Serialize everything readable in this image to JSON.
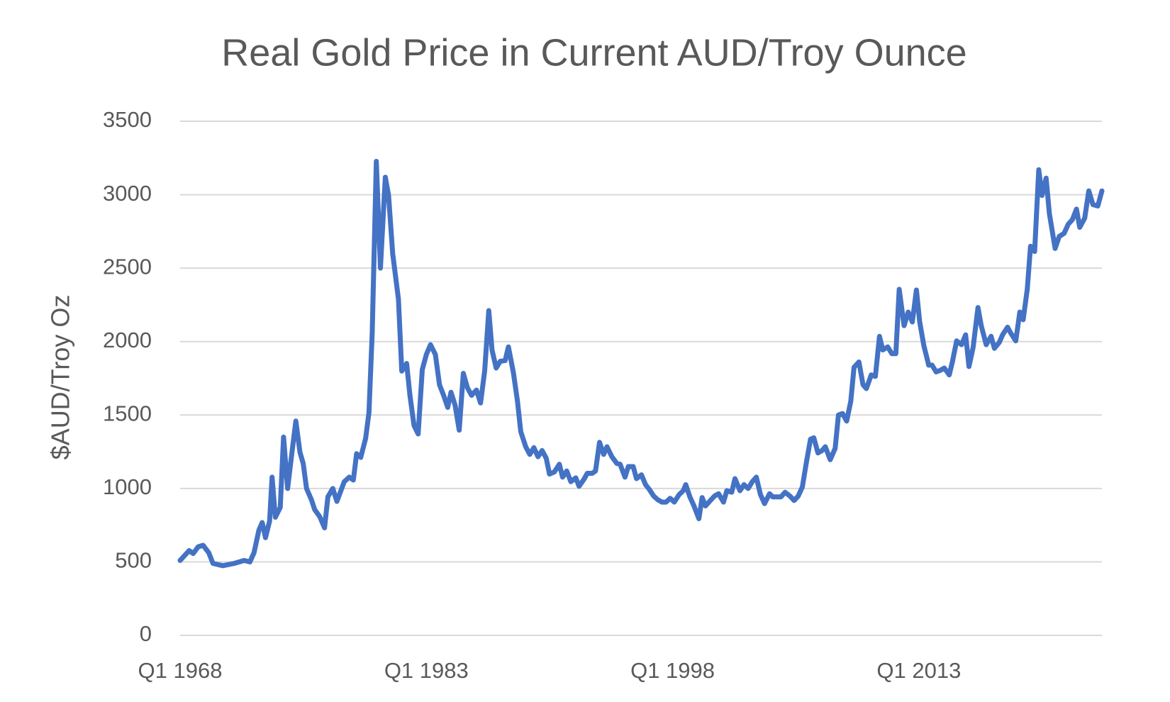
{
  "chart_data": {
    "type": "line",
    "title": "Real Gold Price in Current AUD/Troy Ounce",
    "y_label": "$AUD/Troy Oz",
    "color": "#4472c4",
    "grid": true,
    "xlim": [
      1968,
      2024.15
    ],
    "ylim": [
      0,
      3500
    ],
    "yticks": [
      0,
      500,
      1000,
      1500,
      2000,
      2500,
      3000,
      3500
    ],
    "xticks": [
      {
        "value": 1968,
        "label": "Q1 1968"
      },
      {
        "value": 1983,
        "label": "Q1 1983"
      },
      {
        "value": 1998,
        "label": "Q1 1998"
      },
      {
        "value": 2013,
        "label": "Q1 2013"
      }
    ],
    "x": [
      1968.0,
      1968.55,
      1968.8,
      1969.1,
      1969.4,
      1969.75,
      1970.0,
      1970.6,
      1971.3,
      1971.9,
      1972.25,
      1972.5,
      1972.8,
      1973.0,
      1973.2,
      1973.45,
      1973.6,
      1973.8,
      1974.1,
      1974.3,
      1974.55,
      1974.8,
      1975.05,
      1975.3,
      1975.5,
      1975.7,
      1976.0,
      1976.2,
      1976.5,
      1976.8,
      1977.0,
      1977.3,
      1977.55,
      1978.0,
      1978.3,
      1978.55,
      1978.75,
      1979.0,
      1979.3,
      1979.5,
      1979.7,
      1979.95,
      1980.2,
      1980.5,
      1980.7,
      1980.95,
      1981.3,
      1981.5,
      1981.8,
      1982.0,
      1982.25,
      1982.5,
      1982.75,
      1983.0,
      1983.25,
      1983.55,
      1983.8,
      1984.05,
      1984.3,
      1984.5,
      1984.75,
      1985.0,
      1985.25,
      1985.5,
      1985.75,
      1986.05,
      1986.3,
      1986.55,
      1986.8,
      1987.0,
      1987.25,
      1987.5,
      1987.8,
      1988.0,
      1988.3,
      1988.55,
      1988.75,
      1989.05,
      1989.3,
      1989.55,
      1989.8,
      1990.05,
      1990.3,
      1990.5,
      1990.8,
      1991.1,
      1991.3,
      1991.55,
      1991.8,
      1992.1,
      1992.3,
      1992.6,
      1992.8,
      1993.1,
      1993.3,
      1993.55,
      1993.8,
      1994.0,
      1994.3,
      1994.6,
      1994.8,
      1995.1,
      1995.3,
      1995.6,
      1995.8,
      1996.1,
      1996.35,
      1996.6,
      1996.85,
      1997.1,
      1997.35,
      1997.6,
      1997.85,
      1998.1,
      1998.4,
      1998.65,
      1998.8,
      1999.05,
      1999.3,
      1999.6,
      1999.8,
      2000.0,
      2000.3,
      2000.55,
      2000.8,
      2001.1,
      2001.3,
      2001.6,
      2001.8,
      2002.1,
      2002.35,
      2002.6,
      2002.85,
      2003.1,
      2003.35,
      2003.6,
      2003.9,
      2004.1,
      2004.4,
      2004.6,
      2004.85,
      2005.15,
      2005.4,
      2005.65,
      2005.9,
      2006.15,
      2006.4,
      2006.6,
      2006.85,
      2007.1,
      2007.3,
      2007.6,
      2007.9,
      2008.1,
      2008.35,
      2008.6,
      2008.85,
      2009.05,
      2009.35,
      2009.6,
      2009.8,
      2010.1,
      2010.35,
      2010.6,
      2010.8,
      2011.1,
      2011.35,
      2011.6,
      2011.8,
      2012.1,
      2012.35,
      2012.6,
      2012.85,
      2013.05,
      2013.3,
      2013.6,
      2013.8,
      2014.05,
      2014.3,
      2014.55,
      2014.85,
      2015.05,
      2015.3,
      2015.6,
      2015.85,
      2016.05,
      2016.3,
      2016.6,
      2016.8,
      2017.1,
      2017.4,
      2017.6,
      2017.9,
      2018.1,
      2018.4,
      2018.6,
      2018.9,
      2019.15,
      2019.35,
      2019.6,
      2019.8,
      2020.05,
      2020.3,
      2020.5,
      2020.75,
      2020.95,
      2021.3,
      2021.55,
      2021.85,
      2022.1,
      2022.35,
      2022.6,
      2022.8,
      2023.1,
      2023.35,
      2023.6,
      2023.9,
      2024.15
    ],
    "values": [
      510,
      577,
      557,
      603,
      613,
      562,
      490,
      474,
      490,
      510,
      500,
      562,
      716,
      768,
      665,
      778,
      1077,
      804,
      871,
      1350,
      1000,
      1232,
      1459,
      1247,
      1170,
      1000,
      923,
      856,
      809,
      732,
      943,
      1000,
      912,
      1046,
      1077,
      1057,
      1237,
      1211,
      1340,
      1515,
      2057,
      3227,
      2500,
      3119,
      2995,
      2598,
      2289,
      1799,
      1851,
      1634,
      1428,
      1371,
      1809,
      1912,
      1979,
      1912,
      1706,
      1634,
      1552,
      1655,
      1567,
      1397,
      1784,
      1686,
      1634,
      1670,
      1582,
      1799,
      2211,
      1943,
      1820,
      1866,
      1871,
      1964,
      1789,
      1593,
      1387,
      1284,
      1232,
      1278,
      1216,
      1258,
      1206,
      1098,
      1113,
      1165,
      1077,
      1119,
      1046,
      1072,
      1015,
      1062,
      1103,
      1103,
      1119,
      1314,
      1232,
      1284,
      1216,
      1170,
      1165,
      1077,
      1149,
      1149,
      1067,
      1093,
      1026,
      990,
      948,
      923,
      907,
      907,
      933,
      907,
      959,
      985,
      1026,
      943,
      881,
      794,
      938,
      881,
      918,
      948,
      964,
      907,
      985,
      974,
      1067,
      985,
      1026,
      1000,
      1046,
      1077,
      959,
      897,
      964,
      943,
      943,
      943,
      974,
      948,
      918,
      948,
      1010,
      1180,
      1335,
      1345,
      1242,
      1258,
      1284,
      1196,
      1273,
      1500,
      1510,
      1459,
      1593,
      1825,
      1861,
      1706,
      1680,
      1773,
      1763,
      2036,
      1943,
      1964,
      1918,
      1918,
      2356,
      2108,
      2201,
      2134,
      2351,
      2134,
      1974,
      1840,
      1840,
      1794,
      1804,
      1820,
      1773,
      1866,
      2005,
      1979,
      2046,
      1830,
      1959,
      2232,
      2108,
      1979,
      2036,
      1954,
      1995,
      2046,
      2098,
      2057,
      2005,
      2201,
      2149,
      2356,
      2649,
      2613,
      3170,
      2995,
      3113,
      2871,
      2634,
      2716,
      2737,
      2799,
      2830,
      2902,
      2778,
      2840,
      3026,
      2933,
      2923,
      3026
    ]
  }
}
